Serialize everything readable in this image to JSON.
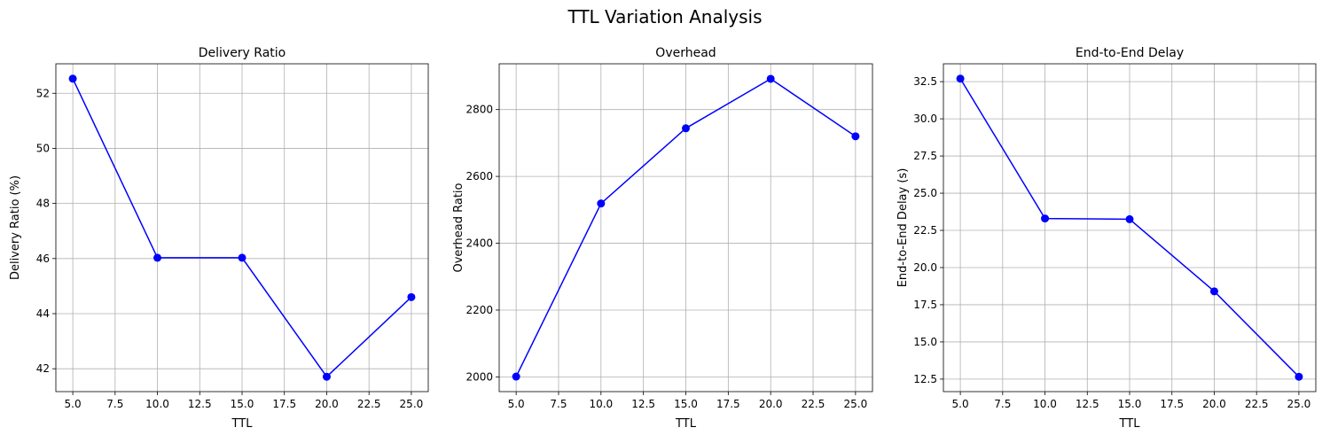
{
  "figure": {
    "suptitle": "TTL Variation Analysis",
    "line_color": "#0000ff",
    "grid_color": "#b0b0b0"
  },
  "chart_data": [
    {
      "type": "line",
      "title": "Delivery Ratio",
      "xlabel": "TTL",
      "ylabel": "Delivery Ratio (%)",
      "x": [
        5,
        10,
        15,
        20,
        25
      ],
      "series": [
        {
          "values": [
            52.53,
            46.03,
            46.03,
            41.71,
            44.6
          ]
        }
      ],
      "xlim": [
        4,
        26
      ],
      "ylim": [
        41.17,
        53.07
      ],
      "xticks": [
        5.0,
        7.5,
        10.0,
        12.5,
        15.0,
        17.5,
        20.0,
        22.5,
        25.0
      ],
      "xtick_labels": [
        "5.0",
        "7.5",
        "10.0",
        "12.5",
        "15.0",
        "17.5",
        "20.0",
        "22.5",
        "25.0"
      ],
      "yticks": [
        42,
        44,
        46,
        48,
        50,
        52
      ],
      "ytick_labels": [
        "42",
        "44",
        "46",
        "48",
        "50",
        "52"
      ],
      "grid": true,
      "marker": "circle"
    },
    {
      "type": "line",
      "title": "Overhead",
      "xlabel": "TTL",
      "ylabel": "Overhead Ratio",
      "x": [
        5,
        10,
        15,
        20,
        25
      ],
      "series": [
        {
          "values": [
            2001,
            2519,
            2744,
            2892,
            2720
          ]
        }
      ],
      "xlim": [
        4,
        26
      ],
      "ylim": [
        1956,
        2937
      ],
      "xticks": [
        5.0,
        7.5,
        10.0,
        12.5,
        15.0,
        17.5,
        20.0,
        22.5,
        25.0
      ],
      "xtick_labels": [
        "5.0",
        "7.5",
        "10.0",
        "12.5",
        "15.0",
        "17.5",
        "20.0",
        "22.5",
        "25.0"
      ],
      "yticks": [
        2000,
        2200,
        2400,
        2600,
        2800
      ],
      "ytick_labels": [
        "2000",
        "2200",
        "2400",
        "2600",
        "2800"
      ],
      "grid": true,
      "marker": "circle"
    },
    {
      "type": "line",
      "title": "End-to-End Delay",
      "xlabel": "TTL",
      "ylabel": "End-to-End Delay (s)",
      "x": [
        5,
        10,
        15,
        20,
        25
      ],
      "series": [
        {
          "values": [
            32.7,
            23.3,
            23.25,
            18.4,
            12.66
          ]
        }
      ],
      "xlim": [
        4,
        26
      ],
      "ylim": [
        11.66,
        33.7
      ],
      "xticks": [
        5.0,
        7.5,
        10.0,
        12.5,
        15.0,
        17.5,
        20.0,
        22.5,
        25.0
      ],
      "xtick_labels": [
        "5.0",
        "7.5",
        "10.0",
        "12.5",
        "15.0",
        "17.5",
        "20.0",
        "22.5",
        "25.0"
      ],
      "yticks": [
        12.5,
        15.0,
        17.5,
        20.0,
        22.5,
        25.0,
        27.5,
        30.0,
        32.5
      ],
      "ytick_labels": [
        "12.5",
        "15.0",
        "17.5",
        "20.0",
        "22.5",
        "25.0",
        "27.5",
        "30.0",
        "32.5"
      ],
      "grid": true,
      "marker": "circle"
    }
  ]
}
